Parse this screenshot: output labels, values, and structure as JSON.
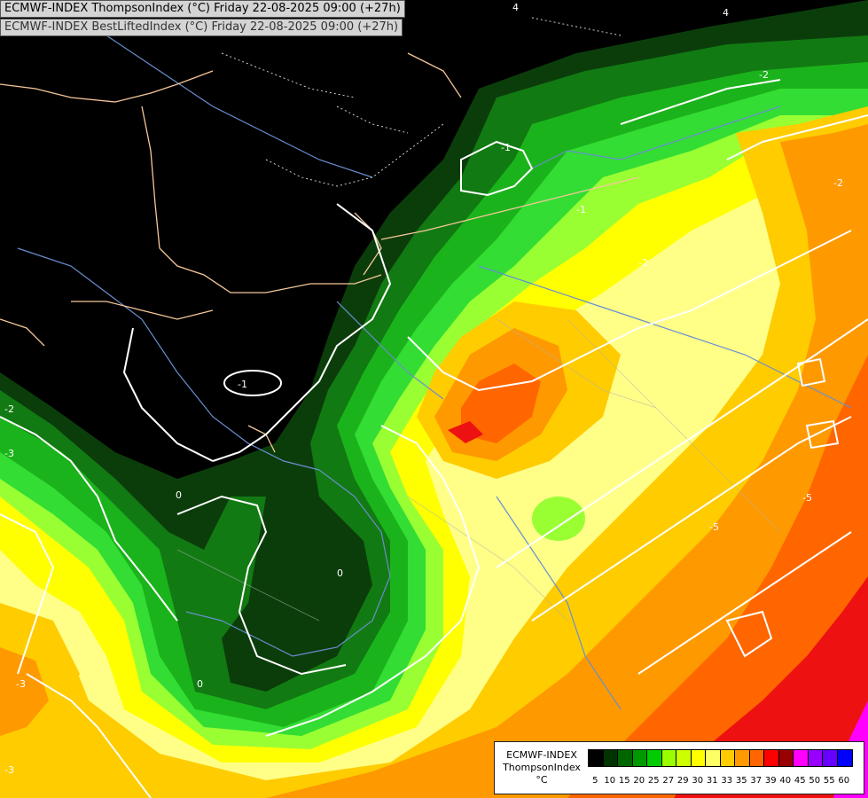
{
  "header": {
    "line1": "ECMWF-INDEX ThompsonIndex (°C) Friday 22-08-2025 09:00 (+27h)",
    "line2": "ECMWF-INDEX BestLiftedIndex (°C) Friday 22-08-2025 09:00 (+27h)"
  },
  "legend": {
    "model": "ECMWF-INDEX",
    "parameter": "ThompsonIndex",
    "unit": "°C",
    "ticks": [
      "5",
      "10",
      "15",
      "20",
      "25",
      "27",
      "29",
      "30",
      "31",
      "33",
      "35",
      "37",
      "39",
      "40",
      "45",
      "50",
      "55",
      "60"
    ],
    "colors": [
      "#000000",
      "#000000",
      "#000000",
      "#003300",
      "#006600",
      "#009900",
      "#00cc00",
      "#99ff00",
      "#ccff00",
      "#ffff00",
      "#ffff66",
      "#ffcc00",
      "#ff9900",
      "#ff6600",
      "#ff0000",
      "#990000",
      "#ff00ff",
      "#9900ff",
      "#6600ff",
      "#0000ff"
    ]
  },
  "isolines": {
    "labels": [
      "4",
      "4",
      "-2",
      "-2",
      "-1",
      "-1",
      "-1",
      "-2",
      "-3",
      "-3",
      "-3",
      "0",
      "0",
      "0",
      "-2",
      "-5",
      "-5"
    ]
  },
  "colors": {
    "land_dark": "#000000",
    "dark_green": "#0b3d0b",
    "mid_green": "#127a12",
    "green": "#1bb31b",
    "light_green": "#33dd33",
    "lime": "#99ff33",
    "yellow": "#ffff00",
    "pale_yellow": "#ffff88",
    "orange": "#ffcc00",
    "dark_orange": "#ff9900",
    "red_orange": "#ff6600",
    "red": "#ee1111",
    "magenta": "#ff00ff",
    "border": "#f5c79a",
    "coast": "#6a8fd0",
    "isoline": "#ffffff"
  }
}
